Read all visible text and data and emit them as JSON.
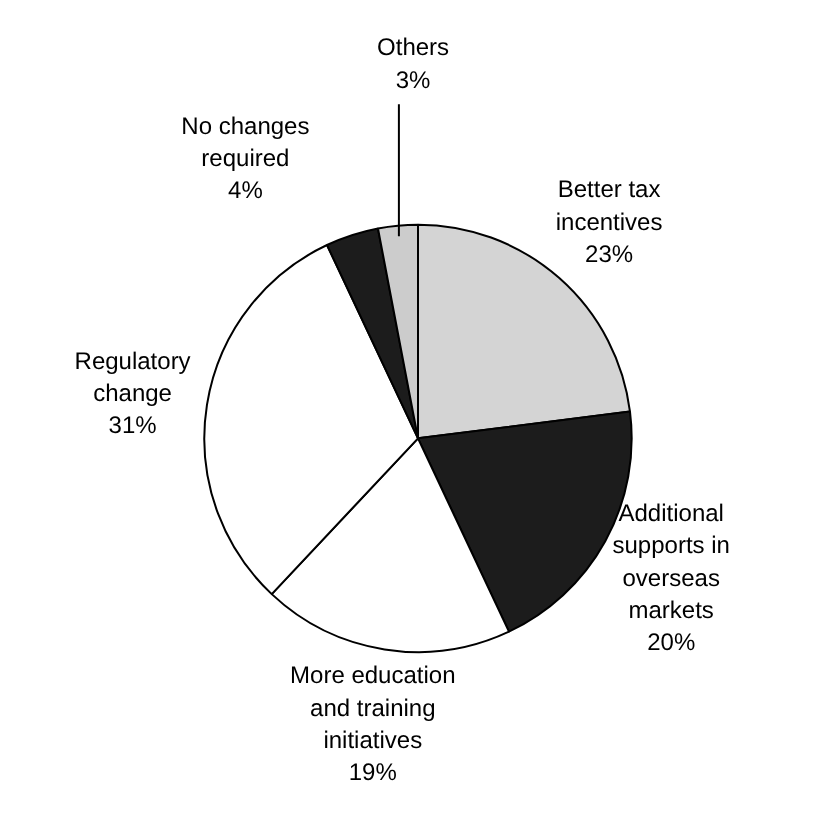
{
  "chart_data": {
    "type": "pie",
    "categories": [
      "Better tax incentives",
      "Additional supports in overseas markets",
      "More education and training initiatives",
      "Regulatory change",
      "No changes required",
      "Others"
    ],
    "values": [
      23,
      20,
      19,
      31,
      4,
      3
    ],
    "colors": [
      "#d4d4d4",
      "#1c1c1c",
      "#ffffff",
      "#ffffff",
      "#1c1c1c",
      "#cccccc"
    ],
    "value_labels": [
      "23%",
      "20%",
      "19%",
      "31%",
      "4%",
      "3%"
    ]
  }
}
